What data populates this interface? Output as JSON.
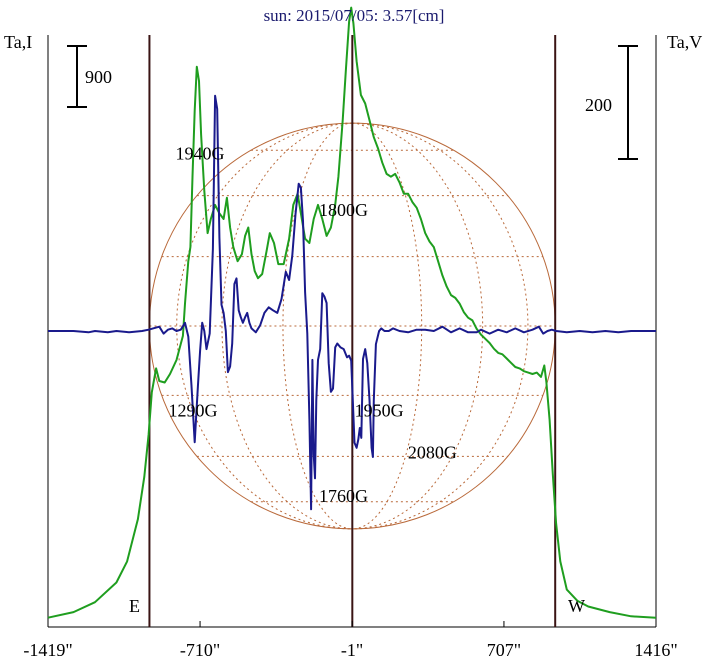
{
  "chart_data": {
    "type": "line",
    "title": "sun: 2015/07/05: 3.57[cm]",
    "left_axis_label": "Ta,I",
    "right_axis_label": "Ta,V",
    "scale_bar_left": "900",
    "scale_bar_right": "200",
    "x_ticks": [
      {
        "value": -1419,
        "label": "-1419\""
      },
      {
        "value": -710,
        "label": "-710\""
      },
      {
        "value": -1,
        "label": "-1\""
      },
      {
        "value": 707,
        "label": "707\""
      },
      {
        "value": 1416,
        "label": "1416\""
      }
    ],
    "xlim": [
      -1419,
      1416
    ],
    "limb_labels": {
      "east": "E",
      "west": "W"
    },
    "limb_x": [
      -946,
      946
    ],
    "series": [
      {
        "color": "#1f9e1f",
        "axis": "left",
        "ylim": [
          -2000,
          4000
        ],
        "points": [
          [
            -1419,
            -1906
          ],
          [
            -1300,
            -1849
          ],
          [
            -1200,
            -1749
          ],
          [
            -1100,
            -1549
          ],
          [
            -1050,
            -1335
          ],
          [
            -1000,
            -906
          ],
          [
            -970,
            -478
          ],
          [
            -950,
            -50
          ],
          [
            -935,
            379
          ],
          [
            -915,
            621
          ],
          [
            -900,
            493
          ],
          [
            -875,
            478
          ],
          [
            -850,
            564
          ],
          [
            -820,
            706
          ],
          [
            -790,
            950
          ],
          [
            -780,
            1278
          ],
          [
            -765,
            1707
          ],
          [
            -755,
            1850
          ],
          [
            -745,
            2564
          ],
          [
            -735,
            3235
          ],
          [
            -725,
            3678
          ],
          [
            -715,
            3535
          ],
          [
            -705,
            2992
          ],
          [
            -690,
            2421
          ],
          [
            -675,
            1992
          ],
          [
            -660,
            2135
          ],
          [
            -640,
            2278
          ],
          [
            -620,
            2192
          ],
          [
            -600,
            2135
          ],
          [
            -585,
            2350
          ],
          [
            -570,
            2049
          ],
          [
            -555,
            1850
          ],
          [
            -535,
            1707
          ],
          [
            -515,
            1778
          ],
          [
            -500,
            1964
          ],
          [
            -485,
            2049
          ],
          [
            -470,
            1778
          ],
          [
            -455,
            1607
          ],
          [
            -440,
            1535
          ],
          [
            -420,
            1578
          ],
          [
            -400,
            1807
          ],
          [
            -385,
            1992
          ],
          [
            -365,
            1892
          ],
          [
            -345,
            1678
          ],
          [
            -320,
            1678
          ],
          [
            -295,
            1935
          ],
          [
            -275,
            2278
          ],
          [
            -255,
            2392
          ],
          [
            -240,
            2192
          ],
          [
            -220,
            1935
          ],
          [
            -200,
            1892
          ],
          [
            -180,
            2135
          ],
          [
            -160,
            2278
          ],
          [
            -140,
            2135
          ],
          [
            -120,
            1964
          ],
          [
            -100,
            2049
          ],
          [
            -80,
            2278
          ],
          [
            -65,
            2564
          ],
          [
            -45,
            3135
          ],
          [
            -30,
            3649
          ],
          [
            -15,
            4135
          ],
          [
            -5,
            4278
          ],
          [
            5,
            4120
          ],
          [
            20,
            3735
          ],
          [
            40,
            3392
          ],
          [
            60,
            3306
          ],
          [
            80,
            3135
          ],
          [
            100,
            2964
          ],
          [
            120,
            2849
          ],
          [
            140,
            2706
          ],
          [
            160,
            2592
          ],
          [
            180,
            2564
          ],
          [
            200,
            2592
          ],
          [
            220,
            2506
          ],
          [
            240,
            2392
          ],
          [
            260,
            2392
          ],
          [
            280,
            2306
          ],
          [
            300,
            2249
          ],
          [
            320,
            2135
          ],
          [
            340,
            1992
          ],
          [
            360,
            1907
          ],
          [
            380,
            1850
          ],
          [
            400,
            1707
          ],
          [
            420,
            1564
          ],
          [
            440,
            1450
          ],
          [
            460,
            1364
          ],
          [
            480,
            1335
          ],
          [
            500,
            1278
          ],
          [
            520,
            1192
          ],
          [
            540,
            1135
          ],
          [
            560,
            1107
          ],
          [
            580,
            1021
          ],
          [
            600,
            964
          ],
          [
            620,
            921
          ],
          [
            640,
            878
          ],
          [
            660,
            821
          ],
          [
            680,
            778
          ],
          [
            700,
            764
          ],
          [
            720,
            721
          ],
          [
            740,
            678
          ],
          [
            760,
            635
          ],
          [
            780,
            621
          ],
          [
            800,
            593
          ],
          [
            820,
            578
          ],
          [
            840,
            564
          ],
          [
            860,
            578
          ],
          [
            880,
            535
          ],
          [
            895,
            650
          ],
          [
            905,
            480
          ],
          [
            920,
            100
          ],
          [
            935,
            -450
          ],
          [
            950,
            -950
          ],
          [
            970,
            -1335
          ],
          [
            1000,
            -1621
          ],
          [
            1050,
            -1735
          ],
          [
            1100,
            -1792
          ],
          [
            1200,
            -1849
          ],
          [
            1300,
            -1892
          ],
          [
            1416,
            -1906
          ]
        ]
      },
      {
        "color": "#1a1a8c",
        "axis": "right",
        "ylim": [
          -900,
          900
        ],
        "points": [
          [
            -1419,
            0
          ],
          [
            -1300,
            0
          ],
          [
            -1230,
            -4
          ],
          [
            -1200,
            0
          ],
          [
            -1140,
            -4
          ],
          [
            -1100,
            0
          ],
          [
            -1040,
            -4
          ],
          [
            -980,
            0
          ],
          [
            -950,
            4
          ],
          [
            -900,
            13
          ],
          [
            -880,
            -8
          ],
          [
            -860,
            4
          ],
          [
            -840,
            8
          ],
          [
            -820,
            0
          ],
          [
            -800,
            4
          ],
          [
            -780,
            25
          ],
          [
            -765,
            -17
          ],
          [
            -750,
            -167
          ],
          [
            -735,
            -338
          ],
          [
            -720,
            -168
          ],
          [
            -710,
            -60
          ],
          [
            -700,
            25
          ],
          [
            -690,
            0
          ],
          [
            -680,
            -55
          ],
          [
            -665,
            -8
          ],
          [
            -650,
            250
          ],
          [
            -640,
            715
          ],
          [
            -630,
            675
          ],
          [
            -620,
            285
          ],
          [
            -610,
            80
          ],
          [
            -600,
            55
          ],
          [
            -590,
            0
          ],
          [
            -580,
            -125
          ],
          [
            -570,
            -108
          ],
          [
            -560,
            -38
          ],
          [
            -550,
            143
          ],
          [
            -540,
            160
          ],
          [
            -530,
            63
          ],
          [
            -520,
            42
          ],
          [
            -510,
            25
          ],
          [
            -500,
            42
          ],
          [
            -490,
            55
          ],
          [
            -480,
            25
          ],
          [
            -470,
            8
          ],
          [
            -450,
            -4
          ],
          [
            -430,
            17
          ],
          [
            -410,
            55
          ],
          [
            -390,
            72
          ],
          [
            -370,
            63
          ],
          [
            -350,
            55
          ],
          [
            -330,
            97
          ],
          [
            -310,
            180
          ],
          [
            -295,
            155
          ],
          [
            -280,
            230
          ],
          [
            -265,
            355
          ],
          [
            -250,
            448
          ],
          [
            -240,
            435
          ],
          [
            -230,
            335
          ],
          [
            -220,
            118
          ],
          [
            -210,
            -8
          ],
          [
            -200,
            -268
          ],
          [
            -192,
            -542
          ],
          [
            -186,
            -88
          ],
          [
            -180,
            -375
          ],
          [
            -174,
            -448
          ],
          [
            -168,
            -210
          ],
          [
            -160,
            -88
          ],
          [
            -150,
            -55
          ],
          [
            -140,
            115
          ],
          [
            -130,
            105
          ],
          [
            -120,
            85
          ],
          [
            -110,
            -98
          ],
          [
            -100,
            -185
          ],
          [
            -90,
            -175
          ],
          [
            -80,
            -50
          ],
          [
            -70,
            -38
          ],
          [
            -55,
            -50
          ],
          [
            -40,
            -55
          ],
          [
            -25,
            -80
          ],
          [
            -15,
            -75
          ],
          [
            -5,
            -90
          ],
          [
            10,
            -340
          ],
          [
            20,
            -355
          ],
          [
            28,
            -330
          ],
          [
            35,
            -295
          ],
          [
            42,
            -325
          ],
          [
            50,
            -85
          ],
          [
            60,
            -55
          ],
          [
            70,
            -98
          ],
          [
            80,
            -210
          ],
          [
            90,
            -355
          ],
          [
            96,
            -383
          ],
          [
            100,
            -210
          ],
          [
            110,
            -40
          ],
          [
            125,
            0
          ],
          [
            135,
            8
          ],
          [
            150,
            0
          ],
          [
            170,
            0
          ],
          [
            190,
            8
          ],
          [
            220,
            0
          ],
          [
            260,
            -4
          ],
          [
            300,
            4
          ],
          [
            340,
            4
          ],
          [
            380,
            0
          ],
          [
            420,
            13
          ],
          [
            460,
            -4
          ],
          [
            500,
            8
          ],
          [
            540,
            -4
          ],
          [
            580,
            -4
          ],
          [
            600,
            4
          ],
          [
            640,
            -8
          ],
          [
            680,
            4
          ],
          [
            720,
            -4
          ],
          [
            760,
            8
          ],
          [
            800,
            -4
          ],
          [
            840,
            4
          ],
          [
            870,
            13
          ],
          [
            890,
            -8
          ],
          [
            910,
            0
          ],
          [
            930,
            4
          ],
          [
            950,
            0
          ],
          [
            1000,
            -4
          ],
          [
            1060,
            0
          ],
          [
            1120,
            -4
          ],
          [
            1180,
            0
          ],
          [
            1240,
            -4
          ],
          [
            1300,
            0
          ],
          [
            1416,
            0
          ]
        ]
      }
    ],
    "annotations": [
      {
        "text": "1940G",
        "x": -710,
        "y_right": 522
      },
      {
        "text": "1800G",
        "x": -41,
        "y_right": 350
      },
      {
        "text": "1290G",
        "x": -743,
        "y_right": -260
      },
      {
        "text": "1950G",
        "x": 125,
        "y_right": -260
      },
      {
        "text": "2080G",
        "x": 373,
        "y_right": -388
      },
      {
        "text": "1760G",
        "x": -41,
        "y_right": -520
      }
    ]
  }
}
